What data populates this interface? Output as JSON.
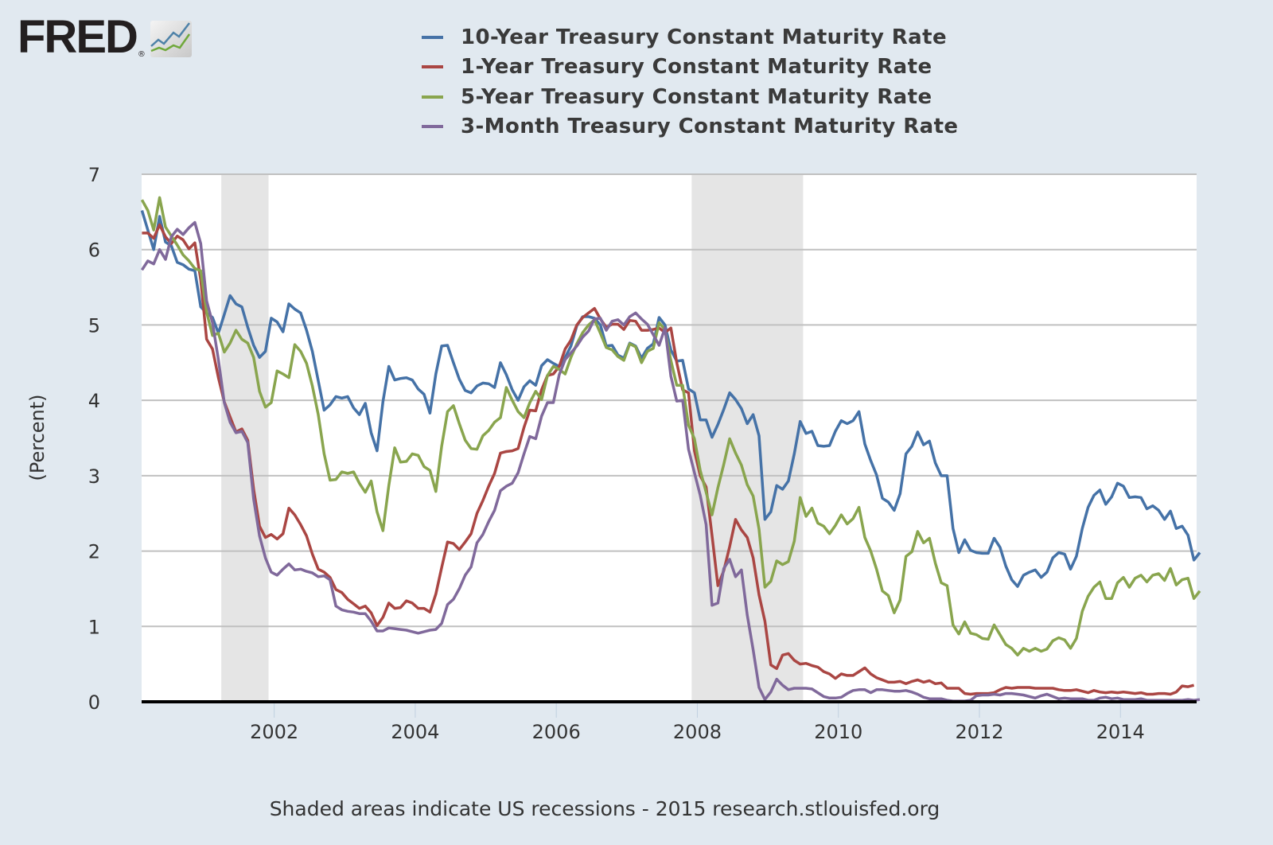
{
  "logo": {
    "text": "FRED",
    "registered": "®"
  },
  "footer": "Shaded areas indicate US recessions - 2015 research.stlouisfed.org",
  "chart_data": {
    "type": "line",
    "title": "",
    "xlabel": "",
    "ylabel": "(Percent)",
    "ylim": [
      0,
      7
    ],
    "xlim": [
      2000.12,
      2015.08
    ],
    "y_ticks": [
      0,
      1,
      2,
      3,
      4,
      5,
      6,
      7
    ],
    "x_ticks": [
      2002,
      2004,
      2006,
      2008,
      2010,
      2012,
      2014
    ],
    "grid": true,
    "legend_position": "top-center",
    "recessions": [
      [
        2001.25,
        2001.92
      ],
      [
        2007.92,
        2009.5
      ]
    ],
    "x_start": 2000.125,
    "x_step_months": 1,
    "series": [
      {
        "name": "10-Year Treasury Constant Maturity Rate",
        "color": "#4572a7",
        "values": [
          6.52,
          6.26,
          6.0,
          6.44,
          6.1,
          6.05,
          5.83,
          5.8,
          5.74,
          5.72,
          5.24,
          5.16,
          5.1,
          4.89,
          5.14,
          5.39,
          5.28,
          5.24,
          4.97,
          4.73,
          4.57,
          4.65,
          5.09,
          5.04,
          4.91,
          5.28,
          5.21,
          5.16,
          4.93,
          4.65,
          4.26,
          3.87,
          3.94,
          4.05,
          4.03,
          4.05,
          3.9,
          3.81,
          3.96,
          3.57,
          3.33,
          3.98,
          4.45,
          4.27,
          4.29,
          4.3,
          4.27,
          4.15,
          4.08,
          3.83,
          4.35,
          4.72,
          4.73,
          4.5,
          4.28,
          4.13,
          4.1,
          4.19,
          4.23,
          4.22,
          4.17,
          4.5,
          4.34,
          4.14,
          4.0,
          4.18,
          4.26,
          4.2,
          4.46,
          4.54,
          4.49,
          4.45,
          4.57,
          4.72,
          4.99,
          5.11,
          5.11,
          5.09,
          5.0,
          4.72,
          4.73,
          4.6,
          4.56,
          4.76,
          4.72,
          4.56,
          4.69,
          4.75,
          5.1,
          5.0,
          4.67,
          4.52,
          4.53,
          4.15,
          4.1,
          3.74,
          3.74,
          3.51,
          3.68,
          3.88,
          4.1,
          4.01,
          3.89,
          3.69,
          3.81,
          3.53,
          2.42,
          2.52,
          2.87,
          2.82,
          2.93,
          3.29,
          3.72,
          3.56,
          3.59,
          3.4,
          3.39,
          3.4,
          3.59,
          3.73,
          3.69,
          3.73,
          3.85,
          3.42,
          3.2,
          3.01,
          2.7,
          2.65,
          2.54,
          2.76,
          3.29,
          3.39,
          3.58,
          3.41,
          3.46,
          3.17,
          3.0,
          3.0,
          2.3,
          1.98,
          2.15,
          2.01,
          1.98,
          1.97,
          1.97,
          2.17,
          2.05,
          1.8,
          1.62,
          1.53,
          1.68,
          1.72,
          1.75,
          1.65,
          1.72,
          1.91,
          1.98,
          1.96,
          1.76,
          1.93,
          2.3,
          2.58,
          2.74,
          2.81,
          2.62,
          2.72,
          2.9,
          2.86,
          2.71,
          2.72,
          2.71,
          2.56,
          2.6,
          2.54,
          2.42,
          2.53,
          2.3,
          2.33,
          2.21,
          1.88,
          1.98
        ]
      },
      {
        "name": "1-Year Treasury Constant Maturity Rate",
        "color": "#aa4643",
        "values": [
          6.22,
          6.22,
          6.15,
          6.33,
          6.17,
          6.08,
          6.18,
          6.13,
          6.01,
          6.09,
          5.6,
          4.81,
          4.68,
          4.3,
          3.98,
          3.78,
          3.58,
          3.62,
          3.47,
          2.82,
          2.33,
          2.18,
          2.22,
          2.16,
          2.23,
          2.57,
          2.48,
          2.35,
          2.2,
          1.96,
          1.76,
          1.72,
          1.65,
          1.49,
          1.45,
          1.36,
          1.3,
          1.24,
          1.27,
          1.18,
          1.01,
          1.12,
          1.31,
          1.24,
          1.25,
          1.34,
          1.31,
          1.24,
          1.24,
          1.19,
          1.43,
          1.78,
          2.12,
          2.1,
          2.02,
          2.12,
          2.23,
          2.5,
          2.67,
          2.86,
          3.03,
          3.3,
          3.32,
          3.33,
          3.36,
          3.64,
          3.87,
          3.86,
          4.14,
          4.33,
          4.35,
          4.45,
          4.68,
          4.8,
          5.0,
          5.1,
          5.16,
          5.22,
          5.08,
          4.97,
          5.01,
          5.01,
          4.94,
          5.06,
          5.05,
          4.93,
          4.93,
          4.94,
          4.96,
          4.9,
          4.96,
          4.5,
          4.14,
          4.1,
          3.33,
          3.0,
          2.85,
          2.21,
          1.54,
          1.74,
          2.06,
          2.42,
          2.28,
          2.18,
          1.91,
          1.42,
          1.07,
          0.49,
          0.44,
          0.62,
          0.64,
          0.55,
          0.5,
          0.51,
          0.48,
          0.46,
          0.4,
          0.37,
          0.31,
          0.37,
          0.35,
          0.35,
          0.4,
          0.45,
          0.37,
          0.32,
          0.29,
          0.26,
          0.26,
          0.27,
          0.24,
          0.27,
          0.29,
          0.26,
          0.28,
          0.24,
          0.25,
          0.18,
          0.18,
          0.18,
          0.11,
          0.1,
          0.11,
          0.11,
          0.11,
          0.12,
          0.16,
          0.19,
          0.18,
          0.19,
          0.19,
          0.19,
          0.18,
          0.18,
          0.18,
          0.18,
          0.16,
          0.15,
          0.15,
          0.16,
          0.14,
          0.12,
          0.15,
          0.13,
          0.12,
          0.13,
          0.12,
          0.13,
          0.12,
          0.11,
          0.12,
          0.1,
          0.1,
          0.11,
          0.11,
          0.1,
          0.13,
          0.21,
          0.2,
          0.22
        ]
      },
      {
        "name": "5-Year Treasury Constant Maturity Rate",
        "color": "#89a54e",
        "values": [
          6.66,
          6.52,
          6.26,
          6.69,
          6.3,
          6.18,
          6.06,
          5.93,
          5.85,
          5.75,
          5.72,
          5.17,
          4.86,
          4.89,
          4.64,
          4.76,
          4.93,
          4.81,
          4.76,
          4.57,
          4.12,
          3.91,
          3.97,
          4.39,
          4.35,
          4.3,
          4.74,
          4.65,
          4.49,
          4.19,
          3.81,
          3.29,
          2.94,
          2.95,
          3.05,
          3.03,
          3.05,
          2.9,
          2.78,
          2.93,
          2.52,
          2.27,
          2.87,
          3.37,
          3.18,
          3.19,
          3.29,
          3.27,
          3.12,
          3.07,
          2.79,
          3.39,
          3.85,
          3.93,
          3.69,
          3.47,
          3.36,
          3.35,
          3.53,
          3.6,
          3.71,
          3.77,
          4.17,
          4.0,
          3.85,
          3.77,
          3.97,
          4.12,
          4.01,
          4.33,
          4.45,
          4.41,
          4.35,
          4.57,
          4.75,
          4.9,
          5.0,
          5.07,
          4.89,
          4.7,
          4.67,
          4.58,
          4.53,
          4.75,
          4.71,
          4.5,
          4.65,
          4.69,
          5.03,
          4.94,
          4.53,
          4.2,
          4.2,
          3.67,
          3.49,
          3.07,
          2.78,
          2.48,
          2.84,
          3.15,
          3.49,
          3.3,
          3.14,
          2.88,
          2.73,
          2.29,
          1.52,
          1.6,
          1.87,
          1.82,
          1.86,
          2.13,
          2.71,
          2.46,
          2.57,
          2.37,
          2.33,
          2.23,
          2.34,
          2.48,
          2.36,
          2.43,
          2.58,
          2.18,
          2.0,
          1.76,
          1.47,
          1.41,
          1.18,
          1.35,
          1.93,
          1.99,
          2.26,
          2.11,
          2.17,
          1.84,
          1.58,
          1.54,
          1.02,
          0.9,
          1.06,
          0.91,
          0.89,
          0.84,
          0.83,
          1.02,
          0.89,
          0.76,
          0.71,
          0.62,
          0.71,
          0.67,
          0.71,
          0.67,
          0.7,
          0.81,
          0.85,
          0.82,
          0.71,
          0.84,
          1.2,
          1.4,
          1.52,
          1.59,
          1.37,
          1.37,
          1.58,
          1.65,
          1.52,
          1.64,
          1.68,
          1.59,
          1.68,
          1.7,
          1.61,
          1.77,
          1.55,
          1.62,
          1.64,
          1.37,
          1.47
        ]
      },
      {
        "name": "3-Month Treasury Constant Maturity Rate",
        "color": "#80699b",
        "values": [
          5.73,
          5.85,
          5.81,
          6.0,
          5.87,
          6.17,
          6.27,
          6.2,
          6.29,
          6.36,
          6.08,
          5.32,
          5.03,
          4.54,
          3.97,
          3.71,
          3.57,
          3.59,
          3.44,
          2.69,
          2.2,
          1.91,
          1.72,
          1.68,
          1.76,
          1.83,
          1.75,
          1.76,
          1.73,
          1.71,
          1.66,
          1.67,
          1.62,
          1.27,
          1.22,
          1.2,
          1.19,
          1.17,
          1.17,
          1.07,
          0.94,
          0.94,
          0.98,
          0.97,
          0.96,
          0.95,
          0.93,
          0.91,
          0.93,
          0.95,
          0.96,
          1.04,
          1.29,
          1.36,
          1.5,
          1.68,
          1.79,
          2.11,
          2.22,
          2.39,
          2.54,
          2.8,
          2.86,
          2.9,
          3.04,
          3.29,
          3.52,
          3.49,
          3.79,
          3.97,
          3.97,
          4.34,
          4.54,
          4.63,
          4.72,
          4.84,
          4.92,
          5.08,
          5.09,
          4.93,
          5.05,
          5.07,
          5.0,
          5.11,
          5.16,
          5.08,
          5.01,
          4.87,
          4.73,
          4.96,
          4.32,
          3.99,
          4.0,
          3.35,
          3.04,
          2.74,
          2.35,
          1.28,
          1.31,
          1.77,
          1.89,
          1.66,
          1.75,
          1.15,
          0.69,
          0.19,
          0.03,
          0.13,
          0.3,
          0.22,
          0.16,
          0.18,
          0.18,
          0.18,
          0.17,
          0.12,
          0.07,
          0.05,
          0.05,
          0.06,
          0.11,
          0.15,
          0.16,
          0.16,
          0.12,
          0.16,
          0.16,
          0.15,
          0.14,
          0.14,
          0.15,
          0.13,
          0.1,
          0.06,
          0.04,
          0.04,
          0.04,
          0.02,
          0.01,
          0.01,
          0.01,
          0.02,
          0.08,
          0.09,
          0.09,
          0.1,
          0.09,
          0.11,
          0.11,
          0.1,
          0.09,
          0.07,
          0.05,
          0.08,
          0.1,
          0.07,
          0.04,
          0.05,
          0.04,
          0.04,
          0.04,
          0.02,
          0.02,
          0.05,
          0.06,
          0.04,
          0.05,
          0.03,
          0.03,
          0.03,
          0.04,
          0.02,
          0.02,
          0.02,
          0.02,
          0.02,
          0.02,
          0.02,
          0.03,
          0.02,
          0.03
        ]
      }
    ]
  }
}
